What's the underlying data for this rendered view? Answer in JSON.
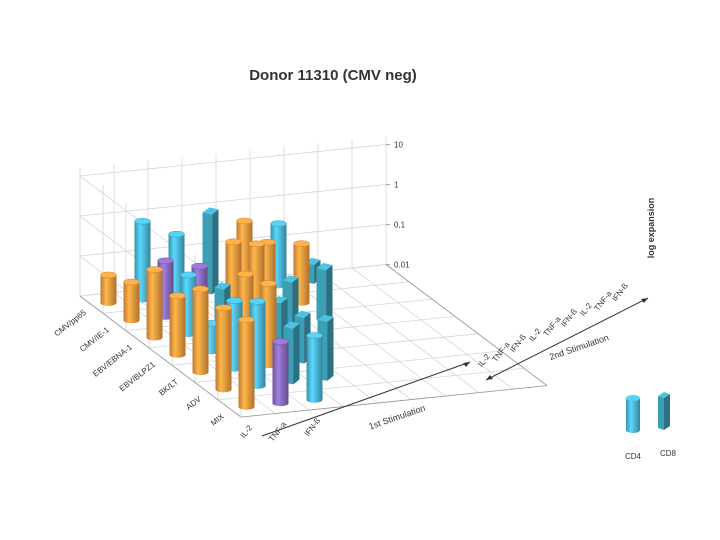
{
  "chart_data": {
    "type": "bar",
    "subtype": "3d-column",
    "title": "Donor 11310 (CMV neg)",
    "zlabel": "log expansion",
    "z_scale": "log",
    "z_ticks": [
      "0.01",
      "0,1",
      "1",
      "10"
    ],
    "z_tick_values": [
      0.01,
      0.1,
      1,
      10
    ],
    "antigens": [
      "CMV/pp65",
      "CMV/IE-1",
      "EBV/EBNA-1",
      "EBV/BLPZ1",
      "BK/LT",
      "ADV",
      "MIX"
    ],
    "first_stimulation": {
      "label": "1st Stimulation",
      "categories": [
        "IL-2",
        "TNF-a",
        "IFN-ß"
      ]
    },
    "second_stimulation": {
      "label": "2nd Stimulation",
      "categories": [
        "IL-2",
        "TNF-a",
        "IFN-ß",
        "IL-2",
        "TNF-a",
        "IFN-ß",
        "IL-2",
        "TNF-a",
        "IFN-ß"
      ]
    },
    "legend": [
      {
        "name": "CD4",
        "color": "#4bb8d8"
      },
      {
        "name": "CD8",
        "color": "#3a97ad"
      }
    ],
    "colors": {
      "orange": "#f39b3f",
      "cyan": "#4bb8d8",
      "teal": "#3a97ad",
      "purple": "#8a6bbf"
    },
    "bars": [
      {
        "antigen": "CMV/pp65",
        "col": 0,
        "value": 0.05,
        "color": "orange"
      },
      {
        "antigen": "CMV/IE-1",
        "col": 0,
        "value": 0.09,
        "color": "orange"
      },
      {
        "antigen": "EBV/EBNA-1",
        "col": 0,
        "value": 0.5,
        "color": "orange"
      },
      {
        "antigen": "EBV/BLPZ1",
        "col": 0,
        "value": 0.3,
        "color": "orange"
      },
      {
        "antigen": "BK/LT",
        "col": 0,
        "value": 1.2,
        "color": "orange"
      },
      {
        "antigen": "ADV",
        "col": 0,
        "value": 1.1,
        "color": "orange"
      },
      {
        "antigen": "MIX",
        "col": 0,
        "value": 1.5,
        "color": "orange"
      },
      {
        "antigen": "CMV/pp65",
        "col": 1,
        "value": 0.9,
        "color": "cyan"
      },
      {
        "antigen": "CMV/IE-1",
        "col": 1,
        "value": 0.25,
        "color": "purple"
      },
      {
        "antigen": "EBV/EBNA-1",
        "col": 1,
        "value": 0.3,
        "color": "cyan"
      },
      {
        "antigen": "EBV/BLPZ1",
        "col": 1,
        "value": 0.05,
        "color": "cyan"
      },
      {
        "antigen": "BK/LT",
        "col": 1,
        "value": 0.5,
        "color": "cyan"
      },
      {
        "antigen": "ADV",
        "col": 1,
        "value": 1.3,
        "color": "cyan"
      },
      {
        "antigen": "MIX",
        "col": 1,
        "value": 0.35,
        "color": "purple"
      },
      {
        "antigen": "CMV/pp65",
        "col": 2,
        "value": 0.35,
        "color": "cyan"
      },
      {
        "antigen": "CMV/IE-1",
        "col": 2,
        "value": 0.15,
        "color": "purple"
      },
      {
        "antigen": "EBV/EBNA-1",
        "col": 2,
        "value": 0.12,
        "color": "teal"
      },
      {
        "antigen": "EBV/BLPZ1",
        "col": 2,
        "value": 0.7,
        "color": "orange"
      },
      {
        "antigen": "BK/LT",
        "col": 2,
        "value": 1.1,
        "color": "orange"
      },
      {
        "antigen": "ADV",
        "col": 2,
        "value": 0.25,
        "color": "teal"
      },
      {
        "antigen": "MIX",
        "col": 2,
        "value": 0.4,
        "color": "cyan"
      },
      {
        "antigen": "CMV/pp65",
        "col": 3,
        "value": 1.0,
        "color": "teal"
      },
      {
        "antigen": "CMV/IE-1",
        "col": 3,
        "value": 0.5,
        "color": "orange"
      },
      {
        "antigen": "EBV/EBNA-1",
        "col": 3,
        "value": 1.2,
        "color": "orange"
      },
      {
        "antigen": "EBV/BLPZ1",
        "col": 3,
        "value": 0.12,
        "color": "teal"
      },
      {
        "antigen": "BK/LT",
        "col": 3,
        "value": 0.14,
        "color": "teal"
      },
      {
        "antigen": "ADV",
        "col": 3,
        "value": 0.3,
        "color": "teal"
      },
      {
        "antigen": "CMV/pp65",
        "col": 4,
        "value": 0.5,
        "color": "orange"
      },
      {
        "antigen": "CMV/IE-1",
        "col": 4,
        "value": 0.4,
        "color": "orange"
      },
      {
        "antigen": "EBV/EBNA-1",
        "col": 4,
        "value": 0.12,
        "color": "teal"
      },
      {
        "antigen": "CMV/pp65",
        "col": 5,
        "value": 0.35,
        "color": "cyan"
      },
      {
        "antigen": "CMV/IE-1",
        "col": 5,
        "value": 0.3,
        "color": "orange"
      },
      {
        "antigen": "EBV/EBNA-1",
        "col": 5,
        "value": 0.2,
        "color": "teal"
      },
      {
        "antigen": "CMV/pp65",
        "col": 6,
        "value": 0.03,
        "color": "teal"
      }
    ]
  }
}
